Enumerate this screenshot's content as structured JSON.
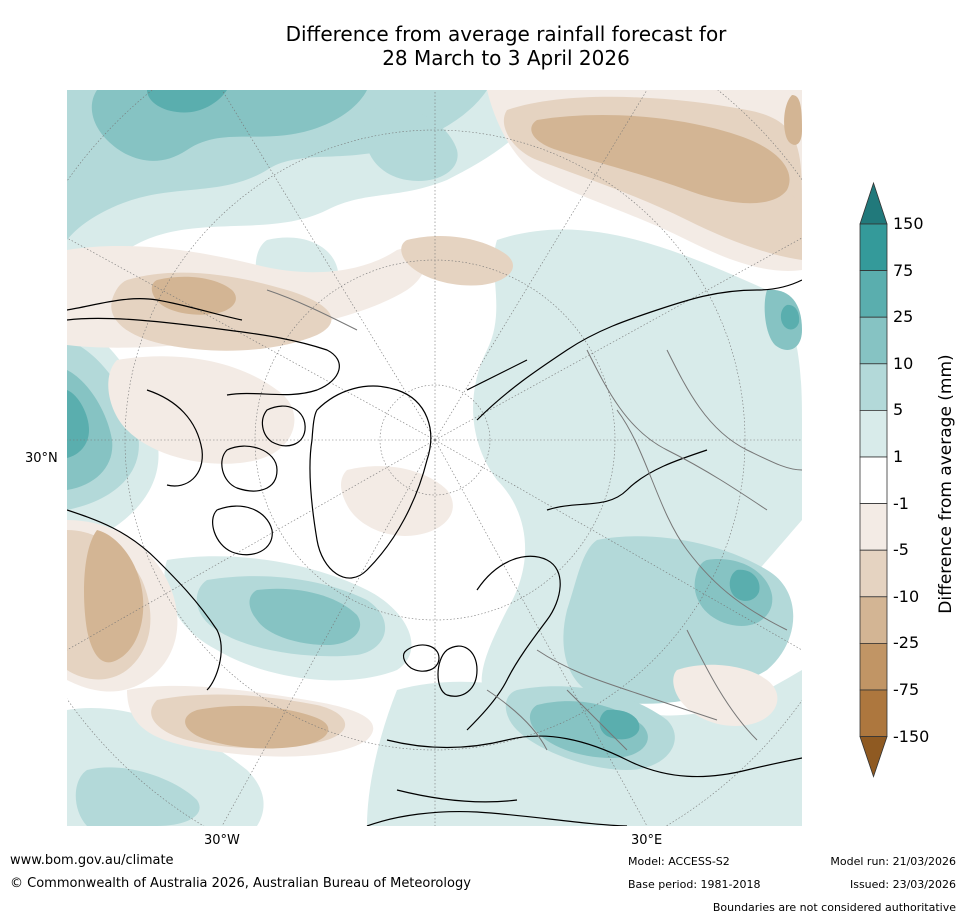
{
  "title": {
    "line1": "Difference from average rainfall forecast for",
    "line2": "28 March to 3 April 2026"
  },
  "map": {
    "lat_label": "30°N",
    "lon_label_west": "30°W",
    "lon_label_east": "30°E"
  },
  "colorbar": {
    "title": "Difference from average (mm)",
    "ticks": [
      "150",
      "75",
      "25",
      "10",
      "5",
      "1",
      "-1",
      "-5",
      "-10",
      "-25",
      "-75",
      "-150"
    ],
    "colors": [
      "#21797b",
      "#349a9a",
      "#5aaeae",
      "#86c3c3",
      "#b3d9d9",
      "#d8ebea",
      "#ffffff",
      "#f3ebe5",
      "#e5d3c1",
      "#d3b594",
      "#c19565",
      "#ad773e",
      "#8f5a22"
    ]
  },
  "footer": {
    "website": "www.bom.gov.au/climate",
    "copyright": "© Commonwealth of Australia 2026, Australian Bureau of Meteorology",
    "model": "Model: ACCESS-S2",
    "base_period": "Base period: 1981-2018",
    "model_run": "Model run: 21/03/2026",
    "issued": "Issued: 23/03/2026",
    "disclaimer": "Boundaries are not considered authoritative"
  }
}
